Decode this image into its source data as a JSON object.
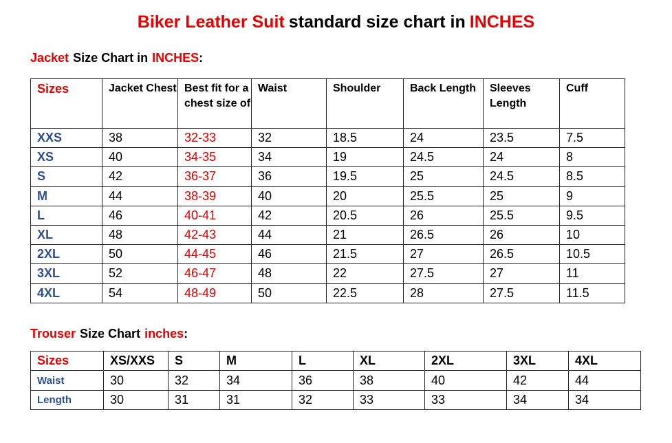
{
  "title": [
    "Biker Leather Suit",
    "standard size chart in",
    "INCHES"
  ],
  "jacket": {
    "heading": [
      "Jacket",
      "Size Chart in",
      "INCHES",
      ":"
    ],
    "header": [
      "Sizes",
      "Jacket Chest",
      "Best fit for a chest size of",
      "Waist",
      "Shoulder",
      "Back Length",
      "Sleeves Length",
      "Cuff"
    ],
    "rows": [
      [
        "XXS",
        38,
        "32-33",
        32,
        18.5,
        24,
        23.5,
        7.5
      ],
      [
        "XS",
        40,
        "34-35",
        34,
        19,
        24.5,
        24,
        8
      ],
      [
        "S",
        42,
        "36-37",
        36,
        19.5,
        25,
        24.5,
        8.5
      ],
      [
        "M",
        44,
        "38-39",
        40,
        20,
        25.5,
        25,
        9
      ],
      [
        "L",
        46,
        "40-41",
        42,
        20.5,
        26,
        25.5,
        9.5
      ],
      [
        "XL",
        48,
        "42-43",
        44,
        21,
        26.5,
        26,
        10
      ],
      [
        "2XL",
        50,
        "44-45",
        46,
        21.5,
        27,
        26.5,
        10.5
      ],
      [
        "3XL",
        52,
        "46-47",
        48,
        22,
        27.5,
        27,
        11
      ],
      [
        "4XL",
        54,
        "48-49",
        50,
        22.5,
        28,
        27.5,
        11.5
      ]
    ]
  },
  "trouser": {
    "heading": [
      "Trouser",
      "Size Chart",
      "inches",
      ":"
    ],
    "header": [
      "Sizes",
      "XS/XXS",
      "S",
      "M",
      "L",
      "XL",
      "2XL",
      "3XL",
      "4XL"
    ],
    "rows": [
      [
        "Waist",
        30,
        32,
        34,
        36,
        38,
        40,
        42,
        44
      ],
      [
        "Length",
        30,
        31,
        31,
        32,
        33,
        33,
        34,
        34
      ]
    ]
  }
}
